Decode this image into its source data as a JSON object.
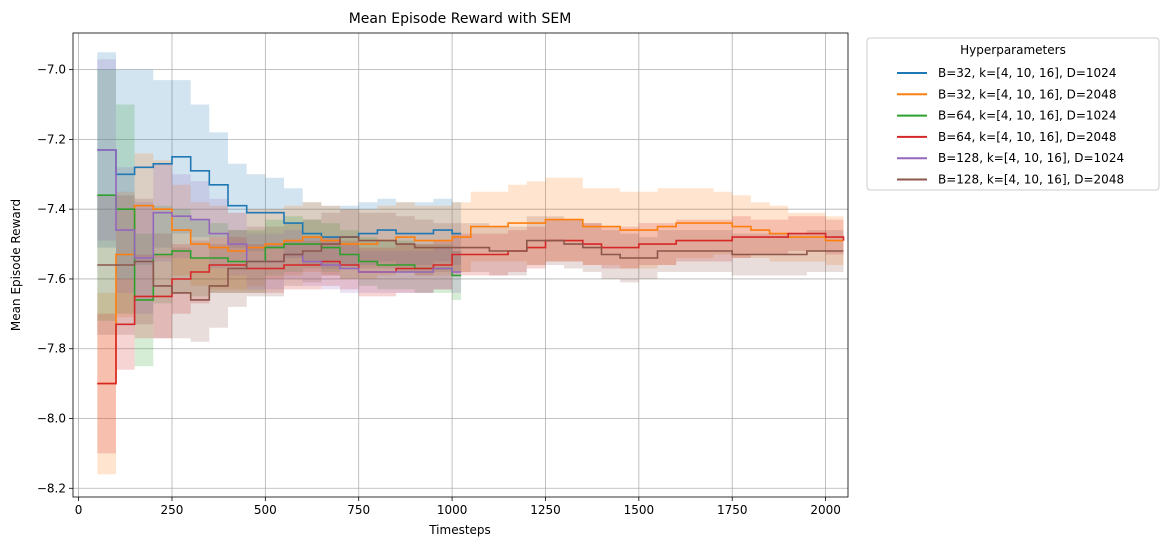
{
  "chart_data": {
    "type": "line",
    "step": true,
    "title": "Mean Episode Reward with SEM",
    "xlabel": "Timesteps",
    "ylabel": "Mean Episode Reward",
    "xlim": [
      -15,
      2060
    ],
    "ylim": [
      -8.225,
      -6.895
    ],
    "xticks": [
      0,
      250,
      500,
      750,
      1000,
      1250,
      1500,
      1750,
      2000
    ],
    "yticks": [
      -8.2,
      -8.0,
      -7.8,
      -7.6,
      -7.4,
      -7.2,
      -7.0
    ],
    "grid": true,
    "legend": {
      "title": "Hyperparameters",
      "placement": "outside-top-right"
    },
    "series": [
      {
        "name": "B=32, k=[4, 10, 16], D=1024",
        "color": "#1f77b4",
        "x": [
          50,
          100,
          150,
          200,
          250,
          300,
          350,
          400,
          450,
          500,
          550,
          600,
          650,
          700,
          750,
          800,
          850,
          900,
          950,
          1000,
          1024
        ],
        "y": [
          -7.23,
          -7.3,
          -7.28,
          -7.27,
          -7.25,
          -7.29,
          -7.33,
          -7.39,
          -7.41,
          -7.41,
          -7.44,
          -7.47,
          -7.48,
          -7.48,
          -7.47,
          -7.46,
          -7.47,
          -7.47,
          -7.46,
          -7.47,
          -7.47
        ],
        "sem": [
          0.28,
          0.3,
          0.28,
          0.24,
          0.22,
          0.19,
          0.15,
          0.12,
          0.11,
          0.1,
          0.1,
          0.09,
          0.09,
          0.09,
          0.09,
          0.09,
          0.09,
          0.09,
          0.09,
          0.09,
          0.09
        ]
      },
      {
        "name": "B=32, k=[4, 10, 16], D=2048",
        "color": "#ff7f0e",
        "x": [
          50,
          100,
          150,
          200,
          250,
          300,
          350,
          400,
          450,
          500,
          550,
          600,
          650,
          700,
          750,
          800,
          850,
          900,
          950,
          1000,
          1050,
          1100,
          1150,
          1200,
          1250,
          1300,
          1350,
          1400,
          1450,
          1500,
          1550,
          1600,
          1650,
          1700,
          1750,
          1800,
          1850,
          1900,
          1950,
          2000,
          2048
        ],
        "y": [
          -7.9,
          -7.53,
          -7.39,
          -7.4,
          -7.46,
          -7.5,
          -7.51,
          -7.52,
          -7.51,
          -7.5,
          -7.49,
          -7.48,
          -7.49,
          -7.5,
          -7.5,
          -7.49,
          -7.48,
          -7.49,
          -7.49,
          -7.48,
          -7.45,
          -7.45,
          -7.44,
          -7.44,
          -7.43,
          -7.43,
          -7.45,
          -7.45,
          -7.46,
          -7.46,
          -7.45,
          -7.44,
          -7.44,
          -7.44,
          -7.45,
          -7.46,
          -7.47,
          -7.48,
          -7.48,
          -7.49,
          -7.49
        ],
        "sem": [
          0.26,
          0.18,
          0.15,
          0.14,
          0.13,
          0.12,
          0.12,
          0.11,
          0.11,
          0.1,
          0.1,
          0.1,
          0.1,
          0.1,
          0.1,
          0.1,
          0.1,
          0.1,
          0.1,
          0.1,
          0.1,
          0.1,
          0.11,
          0.12,
          0.12,
          0.12,
          0.11,
          0.11,
          0.11,
          0.11,
          0.11,
          0.1,
          0.1,
          0.09,
          0.09,
          0.08,
          0.08,
          0.07,
          0.07,
          0.07,
          0.07
        ]
      },
      {
        "name": "B=64, k=[4, 10, 16], D=1024",
        "color": "#2ca02c",
        "x": [
          50,
          100,
          150,
          200,
          250,
          300,
          350,
          400,
          450,
          500,
          550,
          600,
          650,
          700,
          750,
          800,
          850,
          900,
          950,
          1000,
          1024
        ],
        "y": [
          -7.36,
          -7.4,
          -7.66,
          -7.53,
          -7.52,
          -7.54,
          -7.54,
          -7.55,
          -7.55,
          -7.51,
          -7.5,
          -7.5,
          -7.51,
          -7.53,
          -7.55,
          -7.56,
          -7.56,
          -7.57,
          -7.57,
          -7.59,
          -7.59
        ],
        "sem": [
          0.36,
          0.3,
          0.19,
          0.14,
          0.12,
          0.11,
          0.1,
          0.09,
          0.09,
          0.08,
          0.08,
          0.07,
          0.07,
          0.07,
          0.07,
          0.07,
          0.07,
          0.07,
          0.07,
          0.07,
          0.07
        ]
      },
      {
        "name": "B=64, k=[4, 10, 16], D=2048",
        "color": "#d62728",
        "x": [
          50,
          100,
          150,
          200,
          250,
          300,
          350,
          400,
          450,
          500,
          550,
          600,
          650,
          700,
          750,
          800,
          850,
          900,
          950,
          1000,
          1050,
          1100,
          1150,
          1200,
          1250,
          1300,
          1350,
          1400,
          1450,
          1500,
          1550,
          1600,
          1650,
          1700,
          1750,
          1800,
          1850,
          1900,
          1950,
          2000,
          2048
        ],
        "y": [
          -7.9,
          -7.73,
          -7.65,
          -7.65,
          -7.6,
          -7.58,
          -7.56,
          -7.56,
          -7.57,
          -7.57,
          -7.56,
          -7.56,
          -7.55,
          -7.56,
          -7.58,
          -7.58,
          -7.57,
          -7.57,
          -7.56,
          -7.53,
          -7.53,
          -7.53,
          -7.52,
          -7.51,
          -7.49,
          -7.49,
          -7.5,
          -7.51,
          -7.51,
          -7.5,
          -7.5,
          -7.49,
          -7.49,
          -7.49,
          -7.48,
          -7.48,
          -7.48,
          -7.47,
          -7.47,
          -7.48,
          -7.49
        ],
        "sem": [
          0.2,
          0.13,
          0.12,
          0.12,
          0.1,
          0.09,
          0.08,
          0.08,
          0.07,
          0.07,
          0.07,
          0.07,
          0.07,
          0.07,
          0.07,
          0.07,
          0.07,
          0.07,
          0.07,
          0.06,
          0.06,
          0.06,
          0.06,
          0.06,
          0.06,
          0.06,
          0.06,
          0.06,
          0.06,
          0.06,
          0.06,
          0.06,
          0.06,
          0.06,
          0.06,
          0.05,
          0.05,
          0.05,
          0.05,
          0.05,
          0.05
        ]
      },
      {
        "name": "B=128, k=[4, 10, 16], D=1024",
        "color": "#9467bd",
        "x": [
          50,
          100,
          150,
          200,
          250,
          300,
          350,
          400,
          450,
          500,
          550,
          600,
          650,
          700,
          750,
          800,
          850,
          900,
          950,
          1000,
          1024
        ],
        "y": [
          -7.23,
          -7.46,
          -7.54,
          -7.41,
          -7.42,
          -7.43,
          -7.47,
          -7.5,
          -7.55,
          -7.55,
          -7.53,
          -7.55,
          -7.56,
          -7.57,
          -7.58,
          -7.58,
          -7.58,
          -7.58,
          -7.57,
          -7.58,
          -7.58
        ],
        "sem": [
          0.26,
          0.18,
          0.16,
          0.14,
          0.12,
          0.11,
          0.1,
          0.09,
          0.08,
          0.08,
          0.07,
          0.07,
          0.07,
          0.07,
          0.06,
          0.06,
          0.06,
          0.06,
          0.06,
          0.06,
          0.06
        ]
      },
      {
        "name": "B=128, k=[4, 10, 16], D=2048",
        "color": "#8c564b",
        "x": [
          50,
          100,
          150,
          200,
          250,
          300,
          350,
          400,
          450,
          500,
          550,
          600,
          650,
          700,
          750,
          800,
          850,
          900,
          950,
          1000,
          1050,
          1100,
          1150,
          1200,
          1250,
          1300,
          1350,
          1400,
          1450,
          1500,
          1550,
          1600,
          1650,
          1700,
          1750,
          1800,
          1850,
          1900,
          1950,
          2000,
          2048
        ],
        "y": [
          -7.56,
          -7.56,
          -7.55,
          -7.62,
          -7.64,
          -7.66,
          -7.62,
          -7.57,
          -7.55,
          -7.55,
          -7.53,
          -7.52,
          -7.5,
          -7.48,
          -7.49,
          -7.49,
          -7.5,
          -7.51,
          -7.51,
          -7.51,
          -7.51,
          -7.52,
          -7.52,
          -7.49,
          -7.49,
          -7.5,
          -7.51,
          -7.53,
          -7.54,
          -7.54,
          -7.52,
          -7.52,
          -7.52,
          -7.52,
          -7.53,
          -7.53,
          -7.53,
          -7.53,
          -7.52,
          -7.52,
          -7.52
        ],
        "sem": [
          0.2,
          0.2,
          0.18,
          0.15,
          0.13,
          0.12,
          0.12,
          0.11,
          0.1,
          0.1,
          0.09,
          0.09,
          0.09,
          0.08,
          0.08,
          0.08,
          0.08,
          0.08,
          0.07,
          0.07,
          0.07,
          0.07,
          0.07,
          0.07,
          0.07,
          0.07,
          0.07,
          0.07,
          0.07,
          0.06,
          0.06,
          0.06,
          0.06,
          0.06,
          0.06,
          0.06,
          0.06,
          0.06,
          0.06,
          0.06,
          0.06
        ]
      }
    ]
  }
}
